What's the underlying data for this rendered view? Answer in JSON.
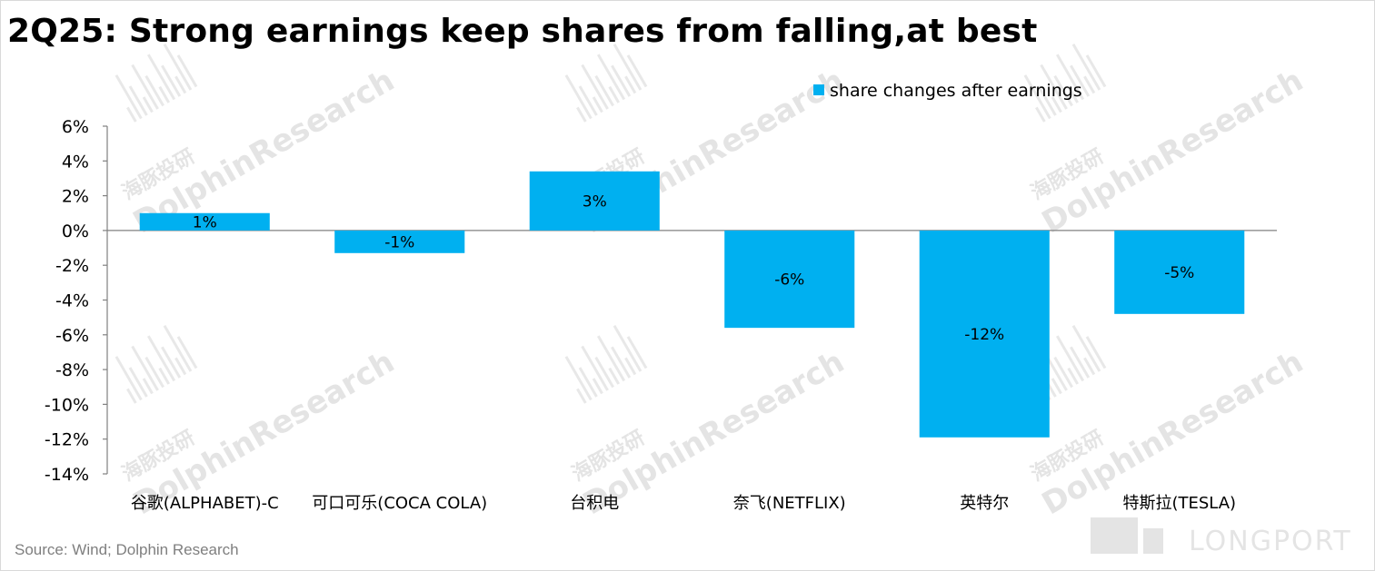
{
  "title": "2Q25: Strong earnings keep shares from falling,at best",
  "source": "Source: Wind; Dolphin Research",
  "watermark": {
    "text": "DolphinResearch",
    "cn": "海豚投研",
    "logo": "LONGPORT"
  },
  "colors": {
    "bar": "#00b0f0",
    "axis": "#808080",
    "text": "#000000",
    "source": "#7f7f7f"
  },
  "chart_data": {
    "type": "bar",
    "categories": [
      "谷歌(ALPHABET)-C",
      "可口可乐(COCA COLA)",
      "台积电",
      "奈飞(NETFLIX)",
      "英特尔",
      "特斯拉(TESLA)"
    ],
    "series": [
      {
        "name": "share changes after earnings",
        "values": [
          1.0,
          -1.3,
          3.4,
          -5.6,
          -11.9,
          -4.8
        ],
        "labels": [
          "1%",
          "-1%",
          "3%",
          "-6%",
          "-12%",
          "-5%"
        ]
      }
    ],
    "ylim": [
      -14,
      6
    ],
    "yticks": [
      6,
      4,
      2,
      0,
      -2,
      -4,
      -6,
      -8,
      -10,
      -12,
      -14
    ],
    "ytick_labels": [
      "6%",
      "4%",
      "2%",
      "0%",
      "-2%",
      "-4%",
      "-6%",
      "-8%",
      "-10%",
      "-12%",
      "-14%"
    ],
    "legend_position": "top-right",
    "grid": false
  }
}
